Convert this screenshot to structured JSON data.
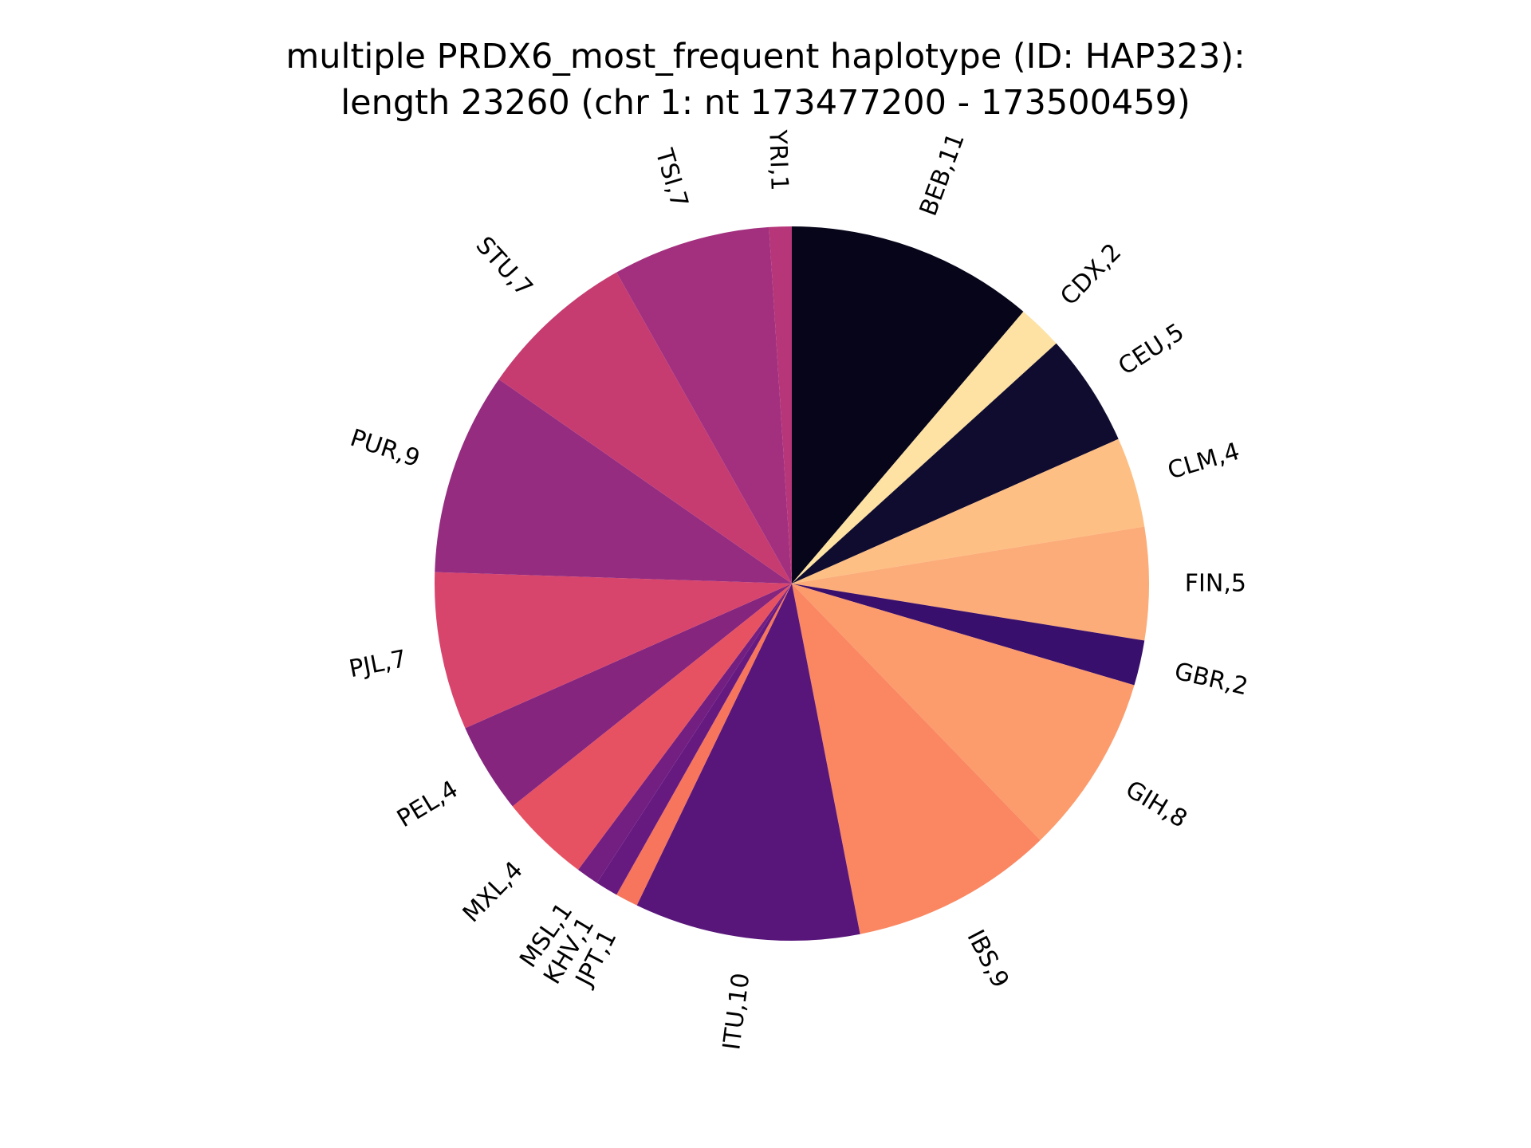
{
  "chart_data": {
    "type": "pie",
    "title_line1": "multiple PRDX6_most_frequent haplotype (ID: HAP323):",
    "title_line2": "length 23260 (chr 1: nt 173477200 - 173500459)",
    "start_angle_deg": 90,
    "direction": "clockwise",
    "slices": [
      {
        "label": "BEB,11",
        "value": 11,
        "color": "#06051a"
      },
      {
        "label": "CDX,2",
        "value": 2,
        "color": "#fde2a3"
      },
      {
        "label": "CEU,5",
        "value": 5,
        "color": "#100c2f"
      },
      {
        "label": "CLM,4",
        "value": 4,
        "color": "#febf84"
      },
      {
        "label": "FIN,5",
        "value": 5,
        "color": "#fcac78"
      },
      {
        "label": "GBR,2",
        "value": 2,
        "color": "#380f6c"
      },
      {
        "label": "GIH,8",
        "value": 8,
        "color": "#fc9b6c"
      },
      {
        "label": "IBS,9",
        "value": 9,
        "color": "#fa8762"
      },
      {
        "label": "ITU,10",
        "value": 10,
        "color": "#58167b"
      },
      {
        "label": "JPT,1",
        "value": 1,
        "color": "#f6755c"
      },
      {
        "label": "KHV,1",
        "value": 1,
        "color": "#661a80"
      },
      {
        "label": "MSL,1",
        "value": 1,
        "color": "#721f81"
      },
      {
        "label": "MXL,4",
        "value": 4,
        "color": "#e75262"
      },
      {
        "label": "PEL,4",
        "value": 4,
        "color": "#85257e"
      },
      {
        "label": "PJL,7",
        "value": 7,
        "color": "#d8456c"
      },
      {
        "label": "PUR,9",
        "value": 9,
        "color": "#952c80"
      },
      {
        "label": "STU,7",
        "value": 7,
        "color": "#c63c71"
      },
      {
        "label": "TSI,7",
        "value": 7,
        "color": "#a3307e"
      },
      {
        "label": "YRI,1",
        "value": 1,
        "color": "#b63679"
      }
    ]
  }
}
